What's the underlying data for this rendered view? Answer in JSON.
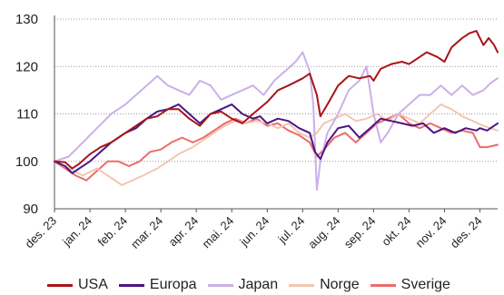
{
  "chart_data": {
    "type": "line",
    "title": "",
    "xlabel": "",
    "ylabel": "",
    "ylim": [
      90,
      130
    ],
    "y_ticks": [
      "90",
      "100",
      "110",
      "120",
      "130"
    ],
    "x_ticks": [
      "des. 23",
      "jan. 24",
      "feb. 24",
      "mar. 24",
      "apr. 24",
      "mai. 24",
      "jun. 24",
      "jul. 24",
      "aug. 24",
      "sep. 24",
      "okt. 24",
      "nov. 24",
      "des. 24"
    ],
    "grid": "horizontal-dotted",
    "legend_position": "bottom",
    "series": [
      {
        "name": "USA",
        "color": "#a8141a",
        "points": [
          [
            0,
            100
          ],
          [
            0.3,
            99.8
          ],
          [
            0.5,
            98.5
          ],
          [
            0.7,
            99.5
          ],
          [
            1.0,
            101.5
          ],
          [
            1.3,
            103
          ],
          [
            1.6,
            104
          ],
          [
            2.0,
            106
          ],
          [
            2.3,
            107.5
          ],
          [
            2.6,
            109
          ],
          [
            2.9,
            109.5
          ],
          [
            3.2,
            111
          ],
          [
            3.5,
            111
          ],
          [
            3.8,
            109
          ],
          [
            4.1,
            107.5
          ],
          [
            4.4,
            110
          ],
          [
            4.7,
            110.5
          ],
          [
            5.0,
            109
          ],
          [
            5.3,
            108
          ],
          [
            5.6,
            110
          ],
          [
            6.0,
            112.5
          ],
          [
            6.3,
            115
          ],
          [
            6.6,
            116
          ],
          [
            7.0,
            117.5
          ],
          [
            7.2,
            118.5
          ],
          [
            7.4,
            114
          ],
          [
            7.5,
            109.5
          ],
          [
            7.7,
            112
          ],
          [
            8.0,
            116
          ],
          [
            8.3,
            118
          ],
          [
            8.6,
            117.5
          ],
          [
            8.9,
            118
          ],
          [
            9.0,
            117
          ],
          [
            9.2,
            119.5
          ],
          [
            9.5,
            120.5
          ],
          [
            9.8,
            121
          ],
          [
            10.0,
            120.5
          ],
          [
            10.2,
            121.5
          ],
          [
            10.5,
            123
          ],
          [
            10.8,
            122
          ],
          [
            11.0,
            121
          ],
          [
            11.2,
            124
          ],
          [
            11.5,
            126
          ],
          [
            11.7,
            127
          ],
          [
            11.9,
            127.5
          ],
          [
            12.0,
            126
          ],
          [
            12.1,
            124.5
          ],
          [
            12.25,
            126
          ],
          [
            12.4,
            124.5
          ],
          [
            12.5,
            123
          ]
        ]
      },
      {
        "name": "Europa",
        "color": "#4b1583",
        "points": [
          [
            0,
            100
          ],
          [
            0.3,
            99
          ],
          [
            0.5,
            97.5
          ],
          [
            0.7,
            98.5
          ],
          [
            1.0,
            100
          ],
          [
            1.3,
            102
          ],
          [
            1.6,
            104
          ],
          [
            2.0,
            106
          ],
          [
            2.3,
            107
          ],
          [
            2.6,
            109
          ],
          [
            2.9,
            110.5
          ],
          [
            3.2,
            111
          ],
          [
            3.5,
            112
          ],
          [
            3.8,
            110
          ],
          [
            4.1,
            108
          ],
          [
            4.4,
            110
          ],
          [
            4.7,
            111
          ],
          [
            5.0,
            112
          ],
          [
            5.3,
            110
          ],
          [
            5.6,
            109
          ],
          [
            5.8,
            109.5
          ],
          [
            6.0,
            108
          ],
          [
            6.3,
            109
          ],
          [
            6.6,
            108.5
          ],
          [
            6.9,
            107
          ],
          [
            7.2,
            106
          ],
          [
            7.35,
            102
          ],
          [
            7.5,
            100.5
          ],
          [
            7.7,
            104
          ],
          [
            8.0,
            107
          ],
          [
            8.3,
            107.5
          ],
          [
            8.6,
            105
          ],
          [
            8.9,
            107
          ],
          [
            9.2,
            109
          ],
          [
            9.5,
            108.5
          ],
          [
            9.8,
            108
          ],
          [
            10.1,
            107.5
          ],
          [
            10.4,
            108
          ],
          [
            10.7,
            106
          ],
          [
            11.0,
            107
          ],
          [
            11.3,
            106
          ],
          [
            11.6,
            107
          ],
          [
            11.9,
            106.5
          ],
          [
            12.0,
            107
          ],
          [
            12.2,
            106.5
          ],
          [
            12.4,
            107.5
          ],
          [
            12.5,
            108
          ]
        ]
      },
      {
        "name": "Japan",
        "color": "#cbb0e8",
        "points": [
          [
            0,
            100
          ],
          [
            0.4,
            101
          ],
          [
            0.8,
            104
          ],
          [
            1.2,
            107
          ],
          [
            1.6,
            110
          ],
          [
            2.0,
            112
          ],
          [
            2.3,
            114
          ],
          [
            2.6,
            116
          ],
          [
            2.9,
            118
          ],
          [
            3.2,
            116
          ],
          [
            3.5,
            115
          ],
          [
            3.8,
            114
          ],
          [
            4.1,
            117
          ],
          [
            4.4,
            116
          ],
          [
            4.7,
            113
          ],
          [
            5.0,
            114
          ],
          [
            5.3,
            115
          ],
          [
            5.6,
            116
          ],
          [
            5.9,
            114
          ],
          [
            6.2,
            117
          ],
          [
            6.5,
            119
          ],
          [
            6.8,
            121
          ],
          [
            7.0,
            123
          ],
          [
            7.2,
            119
          ],
          [
            7.3,
            112
          ],
          [
            7.4,
            94
          ],
          [
            7.5,
            100
          ],
          [
            7.7,
            106
          ],
          [
            8.0,
            110
          ],
          [
            8.3,
            115
          ],
          [
            8.6,
            117
          ],
          [
            8.8,
            120
          ],
          [
            9.0,
            110
          ],
          [
            9.2,
            104
          ],
          [
            9.4,
            106
          ],
          [
            9.7,
            110
          ],
          [
            10.0,
            112
          ],
          [
            10.3,
            114
          ],
          [
            10.6,
            114
          ],
          [
            10.9,
            116
          ],
          [
            11.2,
            114
          ],
          [
            11.5,
            116
          ],
          [
            11.8,
            114
          ],
          [
            12.1,
            115
          ],
          [
            12.3,
            116.5
          ],
          [
            12.5,
            117.5
          ]
        ]
      },
      {
        "name": "Norge",
        "color": "#f2c6b0",
        "points": [
          [
            0,
            100
          ],
          [
            0.4,
            98.5
          ],
          [
            0.8,
            97
          ],
          [
            1.2,
            98.5
          ],
          [
            1.6,
            96.5
          ],
          [
            1.9,
            95
          ],
          [
            2.2,
            96
          ],
          [
            2.5,
            97
          ],
          [
            2.9,
            98.5
          ],
          [
            3.2,
            100
          ],
          [
            3.5,
            101.5
          ],
          [
            3.9,
            103
          ],
          [
            4.2,
            104.5
          ],
          [
            4.5,
            106
          ],
          [
            4.8,
            107.5
          ],
          [
            5.1,
            108.5
          ],
          [
            5.4,
            108
          ],
          [
            5.7,
            108.5
          ],
          [
            6.0,
            108
          ],
          [
            6.3,
            107
          ],
          [
            6.6,
            108
          ],
          [
            6.9,
            106
          ],
          [
            7.2,
            105
          ],
          [
            7.4,
            106
          ],
          [
            7.6,
            108
          ],
          [
            7.9,
            109
          ],
          [
            8.2,
            110
          ],
          [
            8.5,
            108.5
          ],
          [
            8.8,
            109
          ],
          [
            9.1,
            110
          ],
          [
            9.4,
            108.5
          ],
          [
            9.7,
            110
          ],
          [
            10.0,
            109
          ],
          [
            10.3,
            108
          ],
          [
            10.6,
            110
          ],
          [
            10.9,
            112
          ],
          [
            11.2,
            111
          ],
          [
            11.5,
            109.5
          ],
          [
            11.8,
            108.5
          ],
          [
            12.1,
            107.5
          ],
          [
            12.3,
            107
          ],
          [
            12.5,
            106.5
          ]
        ]
      },
      {
        "name": "Sverige",
        "color": "#ee6a6a",
        "points": [
          [
            0,
            100
          ],
          [
            0.3,
            98.5
          ],
          [
            0.6,
            97
          ],
          [
            0.9,
            96
          ],
          [
            1.2,
            98
          ],
          [
            1.5,
            100
          ],
          [
            1.8,
            100
          ],
          [
            2.1,
            99
          ],
          [
            2.4,
            100
          ],
          [
            2.7,
            102
          ],
          [
            3.0,
            102.5
          ],
          [
            3.3,
            104
          ],
          [
            3.6,
            105
          ],
          [
            3.9,
            104
          ],
          [
            4.2,
            105
          ],
          [
            4.5,
            106.5
          ],
          [
            4.8,
            108
          ],
          [
            5.1,
            109
          ],
          [
            5.4,
            108
          ],
          [
            5.7,
            109
          ],
          [
            6.0,
            107.5
          ],
          [
            6.3,
            108
          ],
          [
            6.6,
            106.5
          ],
          [
            6.9,
            105.5
          ],
          [
            7.2,
            104
          ],
          [
            7.4,
            101
          ],
          [
            7.6,
            102.5
          ],
          [
            7.9,
            105
          ],
          [
            8.2,
            106
          ],
          [
            8.5,
            104
          ],
          [
            8.8,
            106
          ],
          [
            9.1,
            108
          ],
          [
            9.4,
            109
          ],
          [
            9.7,
            110
          ],
          [
            10.0,
            108
          ],
          [
            10.3,
            107
          ],
          [
            10.6,
            108
          ],
          [
            10.9,
            107
          ],
          [
            11.2,
            106
          ],
          [
            11.5,
            106.5
          ],
          [
            11.8,
            106
          ],
          [
            12.0,
            103
          ],
          [
            12.2,
            103
          ],
          [
            12.5,
            103.5
          ]
        ]
      }
    ]
  }
}
